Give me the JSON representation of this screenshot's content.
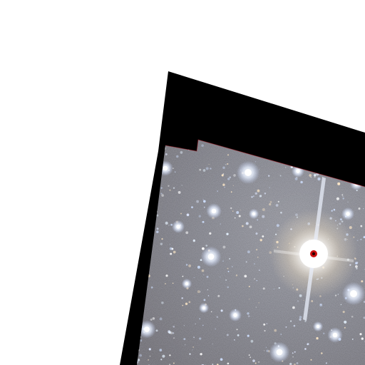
{
  "image": {
    "subject": "star-field",
    "background_color": "#ffffff",
    "mask_color": "#000000",
    "field_color": "#6b6e74",
    "saturated_core_color": "#cc1111",
    "star_color": "#f4f8ff",
    "diffraction_spike_color": "#e8eefa"
  }
}
